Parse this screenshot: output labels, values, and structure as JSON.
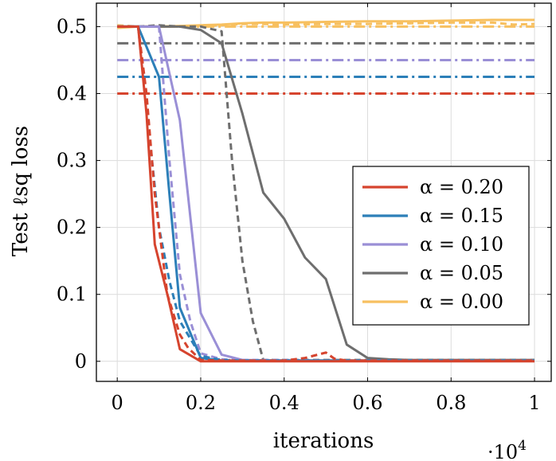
{
  "chart_data": {
    "type": "line",
    "title": "",
    "xlabel": "iterations",
    "ylabel": "Test ℓsq loss",
    "x_multiplier_label": "·10",
    "x_multiplier_exp": "4",
    "xlim": [
      -0.05,
      1.04
    ],
    "ylim": [
      -0.03,
      0.535
    ],
    "xticks": [
      0,
      0.2,
      0.4,
      0.6,
      0.8,
      1
    ],
    "xtick_labels": [
      "0",
      "0.2",
      "0.4",
      "0.6",
      "0.8",
      "1"
    ],
    "yticks": [
      0,
      0.1,
      0.2,
      0.3,
      0.4,
      0.5
    ],
    "ytick_labels": [
      "0",
      "0.1",
      "0.2",
      "0.3",
      "0.4",
      "0.5"
    ],
    "grid": true,
    "legend_position": "center-right",
    "legend": [
      {
        "name": "α = 0.20",
        "color": "#d6442e"
      },
      {
        "name": "α = 0.15",
        "color": "#2c7fb8"
      },
      {
        "name": "α = 0.10",
        "color": "#9a8fd6"
      },
      {
        "name": "α = 0.05",
        "color": "#6e6e6e"
      },
      {
        "name": "α = 0.00",
        "color": "#f7c060"
      }
    ],
    "series": [
      {
        "name": "α = 0.20 baseline",
        "color": "#d6442e",
        "style": "dashdot",
        "x": [
          0,
          1
        ],
        "y": [
          0.4,
          0.4
        ]
      },
      {
        "name": "α = 0.15 baseline",
        "color": "#2c7fb8",
        "style": "dashdot",
        "x": [
          0,
          1
        ],
        "y": [
          0.425,
          0.425
        ]
      },
      {
        "name": "α = 0.10 baseline",
        "color": "#9a8fd6",
        "style": "dashdot",
        "x": [
          0,
          1
        ],
        "y": [
          0.45,
          0.45
        ]
      },
      {
        "name": "α = 0.05 baseline",
        "color": "#6e6e6e",
        "style": "dashdot",
        "x": [
          0,
          1
        ],
        "y": [
          0.475,
          0.475
        ]
      },
      {
        "name": "α = 0.00 baseline",
        "color": "#f7c060",
        "style": "dashdot",
        "x": [
          0,
          1
        ],
        "y": [
          0.5,
          0.5
        ]
      },
      {
        "name": "α = 0.00 solid",
        "color": "#f7c060",
        "style": "solid",
        "x": [
          0,
          0.05,
          0.1,
          0.15,
          0.2,
          0.25,
          0.3,
          0.35,
          0.4,
          0.5,
          0.6,
          0.7,
          0.8,
          0.9,
          1.0
        ],
        "y": [
          0.498,
          0.5,
          0.5,
          0.501,
          0.502,
          0.503,
          0.505,
          0.506,
          0.506,
          0.507,
          0.508,
          0.508,
          0.509,
          0.51,
          0.51
        ]
      },
      {
        "name": "α = 0.00 dashed",
        "color": "#f7c060",
        "style": "dashed",
        "x": [
          0,
          0.05,
          0.1,
          0.15,
          0.2,
          0.25,
          0.3,
          0.35,
          0.4,
          0.5,
          0.6,
          0.7,
          0.8,
          0.9,
          0.95,
          1.0
        ],
        "y": [
          0.502,
          0.5,
          0.5,
          0.5,
          0.501,
          0.502,
          0.504,
          0.504,
          0.503,
          0.504,
          0.504,
          0.505,
          0.506,
          0.506,
          0.503,
          0.504
        ]
      },
      {
        "name": "α = 0.05 solid",
        "color": "#6e6e6e",
        "style": "solid",
        "x": [
          0,
          0.05,
          0.1,
          0.15,
          0.2,
          0.25,
          0.3,
          0.35,
          0.4,
          0.45,
          0.5,
          0.55,
          0.6,
          0.65,
          0.7,
          0.8,
          0.9,
          1.0
        ],
        "y": [
          0.5,
          0.5,
          0.5,
          0.5,
          0.495,
          0.475,
          0.37,
          0.252,
          0.213,
          0.155,
          0.123,
          0.025,
          0.005,
          0.003,
          0.002,
          0.002,
          0.002,
          0.002
        ]
      },
      {
        "name": "α = 0.05 dashed",
        "color": "#6e6e6e",
        "style": "dashed",
        "x": [
          0,
          0.05,
          0.1,
          0.15,
          0.2,
          0.25,
          0.275,
          0.3,
          0.325,
          0.35,
          0.4,
          0.5,
          0.6,
          0.7,
          0.8,
          0.9,
          1.0
        ],
        "y": [
          0.5,
          0.5,
          0.502,
          0.5,
          0.5,
          0.493,
          0.3,
          0.15,
          0.06,
          0.002,
          0.002,
          0.002,
          0.002,
          0.002,
          0.002,
          0.002,
          0.002
        ]
      },
      {
        "name": "α = 0.10 solid",
        "color": "#9a8fd6",
        "style": "solid",
        "x": [
          0,
          0.05,
          0.1,
          0.15,
          0.2,
          0.25,
          0.3,
          0.4,
          0.5,
          0.6,
          0.7,
          0.8,
          0.9,
          1.0
        ],
        "y": [
          0.5,
          0.5,
          0.5,
          0.36,
          0.072,
          0.01,
          0.002,
          0.001,
          0.001,
          0.001,
          0.001,
          0.001,
          0.001,
          0.001
        ]
      },
      {
        "name": "α = 0.10 dashed",
        "color": "#9a8fd6",
        "style": "dashed",
        "x": [
          0,
          0.05,
          0.1,
          0.125,
          0.15,
          0.175,
          0.2,
          0.25,
          0.3,
          0.4,
          0.5,
          0.6,
          0.7,
          0.8,
          0.9,
          1.0
        ],
        "y": [
          0.5,
          0.5,
          0.5,
          0.3,
          0.13,
          0.06,
          0.012,
          0.003,
          0.002,
          0.002,
          0.001,
          0.001,
          0.001,
          0.001,
          0.001,
          0.001
        ]
      },
      {
        "name": "α = 0.15 solid",
        "color": "#2c7fb8",
        "style": "solid",
        "x": [
          0,
          0.05,
          0.1,
          0.125,
          0.15,
          0.2,
          0.25,
          0.3,
          0.4,
          0.5,
          0.6,
          0.7,
          0.8,
          0.9,
          1.0
        ],
        "y": [
          0.5,
          0.5,
          0.425,
          0.25,
          0.08,
          0.005,
          0.001,
          0.001,
          0.001,
          0.001,
          0.001,
          0.001,
          0.001,
          0.001,
          0.001
        ]
      },
      {
        "name": "α = 0.15 dashed",
        "color": "#2c7fb8",
        "style": "dashed",
        "x": [
          0,
          0.05,
          0.075,
          0.1,
          0.125,
          0.15,
          0.2,
          0.25,
          0.3,
          0.4,
          0.5,
          0.6,
          0.7,
          0.8,
          0.9,
          1.0
        ],
        "y": [
          0.5,
          0.5,
          0.35,
          0.2,
          0.12,
          0.06,
          0.008,
          0.002,
          0.001,
          0.001,
          0.001,
          0.001,
          0.001,
          0.001,
          0.001,
          0.001
        ]
      },
      {
        "name": "α = 0.20 solid",
        "color": "#d6442e",
        "style": "solid",
        "x": [
          0,
          0.05,
          0.07,
          0.09,
          0.12,
          0.15,
          0.2,
          0.25,
          0.3,
          0.4,
          0.5,
          0.6,
          0.7,
          0.8,
          0.9,
          1.0
        ],
        "y": [
          0.5,
          0.5,
          0.37,
          0.175,
          0.1,
          0.018,
          0.0,
          0.0,
          0.0,
          0.0,
          0.0,
          0.0,
          0.0,
          0.0,
          0.0,
          0.0
        ]
      },
      {
        "name": "α = 0.20 dashed",
        "color": "#d6442e",
        "style": "dashed",
        "x": [
          0,
          0.05,
          0.07,
          0.09,
          0.12,
          0.15,
          0.17,
          0.2,
          0.25,
          0.3,
          0.35,
          0.4,
          0.45,
          0.5,
          0.52,
          0.55,
          0.6,
          0.7,
          0.8,
          0.9,
          1.0
        ],
        "y": [
          0.5,
          0.5,
          0.4,
          0.25,
          0.1,
          0.04,
          0.02,
          0.002,
          0.001,
          0.001,
          0.001,
          0.001,
          0.005,
          0.013,
          0.004,
          0.001,
          0.001,
          0.001,
          0.001,
          0.001,
          0.001
        ]
      }
    ]
  }
}
